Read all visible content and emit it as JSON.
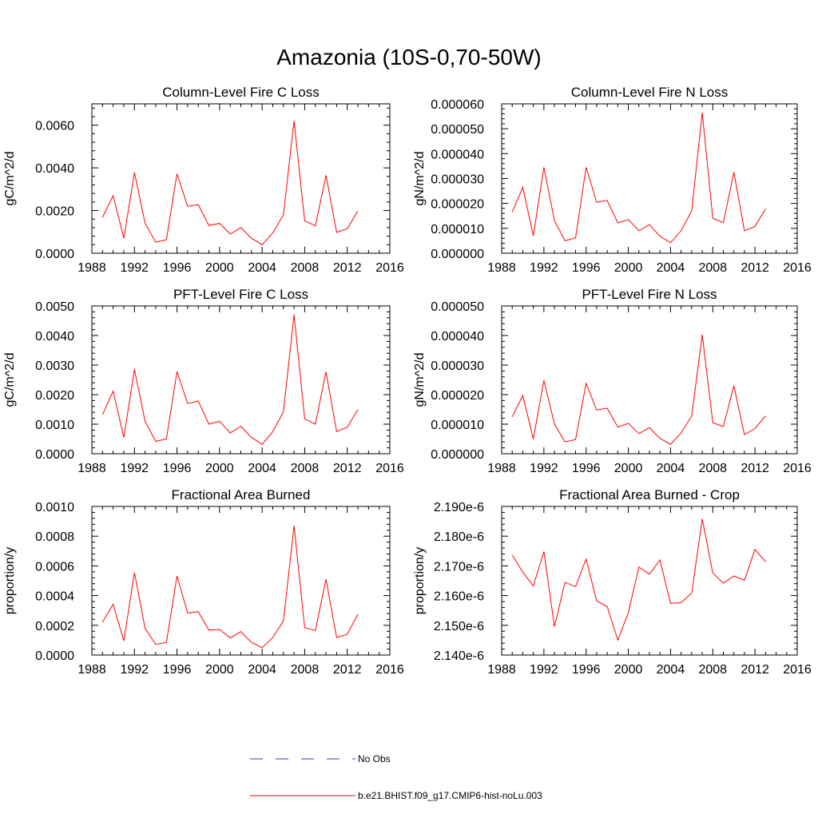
{
  "figure": {
    "title": "Amazonia (10S-0,70-50W)"
  },
  "legend": [
    {
      "label": "No Obs",
      "color": "#3333cc",
      "style": "dashed"
    },
    {
      "label": "b.e21.BHIST.f09_g17.CMIP6-hist-noLu.003",
      "color": "#ff0000",
      "style": "solid"
    }
  ],
  "chart_data": [
    {
      "type": "line",
      "title": "Column-Level Fire C Loss",
      "ylabel": "gC/m^2/d",
      "xlabel": "",
      "xlim": [
        1988,
        2016
      ],
      "ylim": [
        0,
        0.007
      ],
      "xticks": [
        1988,
        1992,
        1996,
        2000,
        2004,
        2008,
        2012,
        2016
      ],
      "xtick_labels": [
        "1988",
        "1992",
        "1996",
        "2000",
        "2004",
        "2008",
        "2012",
        "2016"
      ],
      "yticks": [
        0,
        0.002,
        0.004,
        0.006
      ],
      "ytick_labels": [
        "0.0000",
        "0.0020",
        "0.0040",
        "0.0060"
      ],
      "grid": false,
      "series": [
        {
          "name": "b.e21.BHIST.f09_g17.CMIP6-hist-noLu.003",
          "color": "#ff0000",
          "x": [
            1989,
            1990,
            1991,
            1992,
            1993,
            1994,
            1995,
            1996,
            1997,
            1998,
            1999,
            2000,
            2001,
            2002,
            2003,
            2004,
            2005,
            2006,
            2007,
            2008,
            2009,
            2010,
            2011,
            2012,
            2013
          ],
          "y": [
            0.00168,
            0.0027,
            0.0007,
            0.00378,
            0.0014,
            0.00052,
            0.00063,
            0.00372,
            0.0022,
            0.00228,
            0.0013,
            0.0014,
            0.0009,
            0.0012,
            0.0007,
            0.0004,
            0.00095,
            0.0018,
            0.0062,
            0.00152,
            0.00128,
            0.00365,
            0.00098,
            0.00115,
            0.00198
          ]
        }
      ]
    },
    {
      "type": "line",
      "title": "Column-Level Fire N Loss",
      "ylabel": "gN/m^2/d",
      "xlabel": "",
      "xlim": [
        1988,
        2016
      ],
      "ylim": [
        0,
        6e-05
      ],
      "xticks": [
        1988,
        1992,
        1996,
        2000,
        2004,
        2008,
        2012,
        2016
      ],
      "xtick_labels": [
        "1988",
        "1992",
        "1996",
        "2000",
        "2004",
        "2008",
        "2012",
        "2016"
      ],
      "yticks": [
        0,
        1e-05,
        2e-05,
        3e-05,
        4e-05,
        5e-05,
        6e-05
      ],
      "ytick_labels": [
        "0.000000",
        "0.000010",
        "0.000020",
        "0.000030",
        "0.000040",
        "0.000050",
        "0.000060"
      ],
      "grid": false,
      "series": [
        {
          "name": "b.e21.BHIST.f09_g17.CMIP6-hist-noLu.003",
          "color": "#ff0000",
          "x": [
            1989,
            1990,
            1991,
            1992,
            1993,
            1994,
            1995,
            1996,
            1997,
            1998,
            1999,
            2000,
            2001,
            2002,
            2003,
            2004,
            2005,
            2006,
            2007,
            2008,
            2009,
            2010,
            2011,
            2012,
            2013
          ],
          "y": [
            1.65e-05,
            2.65e-05,
            7e-06,
            3.45e-05,
            1.3e-05,
            5e-06,
            6.2e-06,
            3.45e-05,
            2.05e-05,
            2.12e-05,
            1.22e-05,
            1.35e-05,
            9e-06,
            1.15e-05,
            6.8e-06,
            4.2e-06,
            9e-06,
            1.7e-05,
            5.65e-05,
            1.4e-05,
            1.23e-05,
            3.25e-05,
            9e-06,
            1.08e-05,
            1.78e-05
          ]
        }
      ]
    },
    {
      "type": "line",
      "title": "PFT-Level Fire C Loss",
      "ylabel": "gC/m^2/d",
      "xlabel": "",
      "xlim": [
        1988,
        2016
      ],
      "ylim": [
        0,
        0.005
      ],
      "xticks": [
        1988,
        1992,
        1996,
        2000,
        2004,
        2008,
        2012,
        2016
      ],
      "xtick_labels": [
        "1988",
        "1992",
        "1996",
        "2000",
        "2004",
        "2008",
        "2012",
        "2016"
      ],
      "yticks": [
        0,
        0.001,
        0.002,
        0.003,
        0.004,
        0.005
      ],
      "ytick_labels": [
        "0.0000",
        "0.0010",
        "0.0020",
        "0.0030",
        "0.0040",
        "0.0050"
      ],
      "grid": false,
      "series": [
        {
          "name": "b.e21.BHIST.f09_g17.CMIP6-hist-noLu.003",
          "color": "#ff0000",
          "x": [
            1989,
            1990,
            1991,
            1992,
            1993,
            1994,
            1995,
            1996,
            1997,
            1998,
            1999,
            2000,
            2001,
            2002,
            2003,
            2004,
            2005,
            2006,
            2007,
            2008,
            2009,
            2010,
            2011,
            2012,
            2013
          ],
          "y": [
            0.00132,
            0.00212,
            0.00055,
            0.00285,
            0.0011,
            0.00042,
            0.0005,
            0.00278,
            0.0017,
            0.00178,
            0.001,
            0.0011,
            0.0007,
            0.00093,
            0.00055,
            0.00032,
            0.00075,
            0.00142,
            0.0047,
            0.00118,
            0.001,
            0.00277,
            0.00075,
            0.0009,
            0.0015
          ]
        }
      ]
    },
    {
      "type": "line",
      "title": "PFT-Level Fire N Loss",
      "ylabel": "gN/m^2/d",
      "xlabel": "",
      "xlim": [
        1988,
        2016
      ],
      "ylim": [
        0,
        5e-05
      ],
      "xticks": [
        1988,
        1992,
        1996,
        2000,
        2004,
        2008,
        2012,
        2016
      ],
      "xtick_labels": [
        "1988",
        "1992",
        "1996",
        "2000",
        "2004",
        "2008",
        "2012",
        "2016"
      ],
      "yticks": [
        0,
        1e-05,
        2e-05,
        3e-05,
        4e-05,
        5e-05
      ],
      "ytick_labels": [
        "0.000000",
        "0.000010",
        "0.000020",
        "0.000030",
        "0.000040",
        "0.000050"
      ],
      "grid": false,
      "series": [
        {
          "name": "b.e21.BHIST.f09_g17.CMIP6-hist-noLu.003",
          "color": "#ff0000",
          "x": [
            1989,
            1990,
            1991,
            1992,
            1993,
            1994,
            1995,
            1996,
            1997,
            1998,
            1999,
            2000,
            2001,
            2002,
            2003,
            2004,
            2005,
            2006,
            2007,
            2008,
            2009,
            2010,
            2011,
            2012,
            2013
          ],
          "y": [
            1.25e-05,
            1.97e-05,
            5e-06,
            2.48e-05,
            1e-05,
            4e-06,
            4.8e-06,
            2.38e-05,
            1.48e-05,
            1.54e-05,
            9e-06,
            1.03e-05,
            6.8e-06,
            8.8e-06,
            5.2e-06,
            3.2e-06,
            7e-06,
            1.28e-05,
            4.03e-05,
            1.05e-05,
            9.2e-06,
            2.3e-05,
            6.5e-06,
            8.5e-06,
            1.28e-05
          ]
        }
      ]
    },
    {
      "type": "line",
      "title": "Fractional Area Burned",
      "ylabel": "proportion/y",
      "xlabel": "",
      "xlim": [
        1988,
        2016
      ],
      "ylim": [
        0,
        0.001
      ],
      "xticks": [
        1988,
        1992,
        1996,
        2000,
        2004,
        2008,
        2012,
        2016
      ],
      "xtick_labels": [
        "1988",
        "1992",
        "1996",
        "2000",
        "2004",
        "2008",
        "2012",
        "2016"
      ],
      "yticks": [
        0,
        0.0002,
        0.0004,
        0.0006,
        0.0008,
        0.001
      ],
      "ytick_labels": [
        "0.0000",
        "0.0002",
        "0.0004",
        "0.0006",
        "0.0008",
        "0.0010"
      ],
      "grid": false,
      "series": [
        {
          "name": "b.e21.BHIST.f09_g17.CMIP6-hist-noLu.003",
          "color": "#ff0000",
          "x": [
            1989,
            1990,
            1991,
            1992,
            1993,
            1994,
            1995,
            1996,
            1997,
            1998,
            1999,
            2000,
            2001,
            2002,
            2003,
            2004,
            2005,
            2006,
            2007,
            2008,
            2009,
            2010,
            2011,
            2012,
            2013
          ],
          "y": [
            0.000222,
            0.000342,
            9.5e-05,
            0.000555,
            0.00018,
            7.2e-05,
            8.5e-05,
            0.000532,
            0.000282,
            0.000292,
            0.000168,
            0.000172,
            0.000115,
            0.000158,
            8.5e-05,
            5e-05,
            0.000118,
            0.00023,
            0.00087,
            0.000185,
            0.000165,
            0.00051,
            0.000118,
            0.00014,
            0.000275
          ]
        }
      ]
    },
    {
      "type": "line",
      "title": "Fractional Area Burned - Crop",
      "ylabel": "proportion/y",
      "xlabel": "",
      "xlim": [
        1988,
        2016
      ],
      "ylim": [
        2.14e-06,
        2.19e-06
      ],
      "xticks": [
        1988,
        1992,
        1996,
        2000,
        2004,
        2008,
        2012,
        2016
      ],
      "xtick_labels": [
        "1988",
        "1992",
        "1996",
        "2000",
        "2004",
        "2008",
        "2012",
        "2016"
      ],
      "yticks": [
        2.14e-06,
        2.15e-06,
        2.16e-06,
        2.17e-06,
        2.18e-06,
        2.19e-06
      ],
      "ytick_labels": [
        "2.140e-6",
        "2.150e-6",
        "2.160e-6",
        "2.170e-6",
        "2.180e-6",
        "2.190e-6"
      ],
      "grid": false,
      "series": [
        {
          "name": "b.e21.BHIST.f09_g17.CMIP6-hist-noLu.003",
          "color": "#ff0000",
          "x": [
            1989,
            1990,
            1991,
            1992,
            1993,
            1994,
            1995,
            1996,
            1997,
            1998,
            1999,
            2000,
            2001,
            2002,
            2003,
            2004,
            2005,
            2006,
            2007,
            2008,
            2009,
            2010,
            2011,
            2012,
            2013
          ],
          "y": [
            2.1737e-06,
            2.1679e-06,
            2.1632e-06,
            2.1748e-06,
            2.1496e-06,
            2.1645e-06,
            2.163e-06,
            2.1723e-06,
            2.1582e-06,
            2.1563e-06,
            2.145e-06,
            2.1543e-06,
            2.1696e-06,
            2.1672e-06,
            2.172e-06,
            2.1574e-06,
            2.1576e-06,
            2.1609e-06,
            2.1858e-06,
            2.1676e-06,
            2.1642e-06,
            2.1666e-06,
            2.1652e-06,
            2.1755e-06,
            2.1714e-06
          ]
        }
      ]
    }
  ]
}
